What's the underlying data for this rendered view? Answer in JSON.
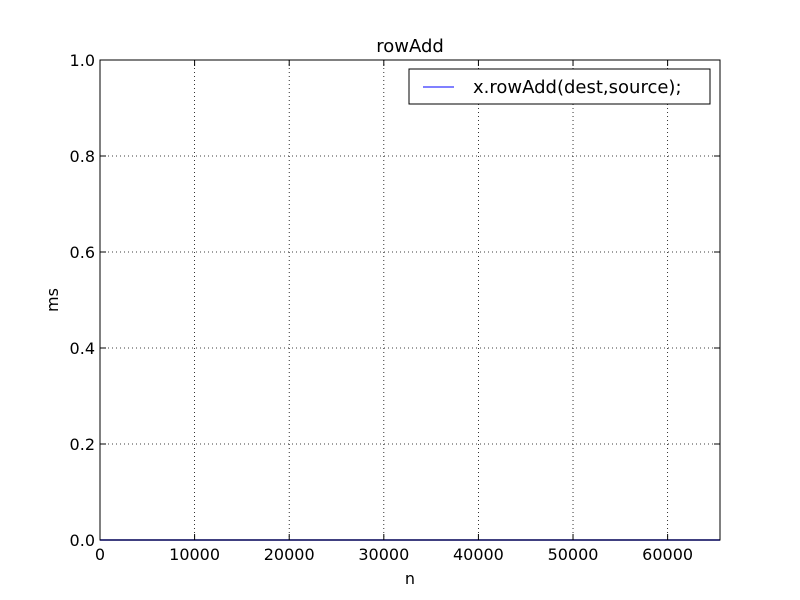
{
  "chart_data": {
    "type": "line",
    "title": "rowAdd",
    "xlabel": "n",
    "ylabel": "ms",
    "xlim": [
      0,
      65536
    ],
    "ylim": [
      0,
      1.0
    ],
    "xticks": [
      0,
      10000,
      20000,
      30000,
      40000,
      50000,
      60000
    ],
    "xtick_labels": [
      "0",
      "10000",
      "20000",
      "30000",
      "40000",
      "50000",
      "60000"
    ],
    "yticks": [
      0.0,
      0.2,
      0.4,
      0.6,
      0.8,
      1.0
    ],
    "ytick_labels": [
      "0.0",
      "0.2",
      "0.4",
      "0.6",
      "0.8",
      "1.0"
    ],
    "grid": true,
    "legend_position": "top-right",
    "series": [
      {
        "name": "x.rowAdd(dest,source);",
        "color": "#0000ff",
        "x": [
          0,
          16384,
          32768,
          49152,
          65536
        ],
        "y": [
          0.0,
          0.0,
          0.0,
          0.0,
          0.0
        ]
      }
    ]
  }
}
